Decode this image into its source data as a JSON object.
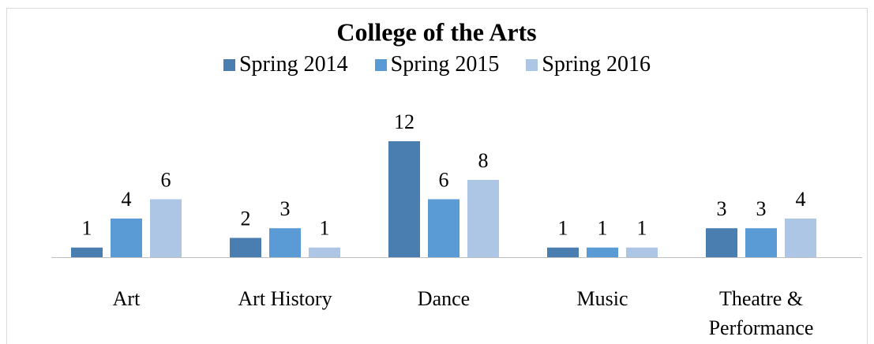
{
  "chart_data": {
    "type": "bar",
    "title": "College of the Arts",
    "categories": [
      "Art",
      "Art History",
      "Dance",
      "Music",
      "Theatre & Performance"
    ],
    "series": [
      {
        "name": "Spring 2014",
        "color": "#4a7eb0",
        "values": [
          1,
          2,
          12,
          1,
          3
        ]
      },
      {
        "name": "Spring 2015",
        "color": "#5b9bd5",
        "values": [
          4,
          3,
          6,
          1,
          3
        ]
      },
      {
        "name": "Spring 2016",
        "color": "#aec6e6",
        "values": [
          6,
          1,
          8,
          1,
          4
        ]
      }
    ]
  }
}
